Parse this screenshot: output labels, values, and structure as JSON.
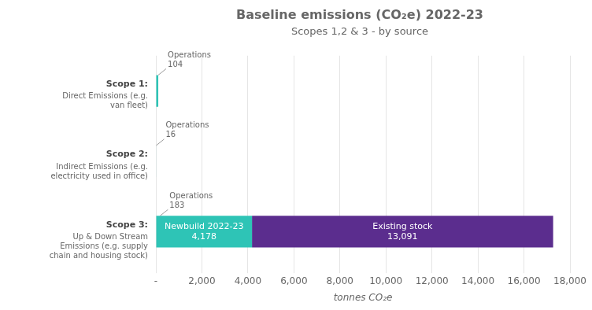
{
  "chart_data": {
    "type": "bar",
    "orientation": "horizontal",
    "stacked": true,
    "grid": true,
    "title": "Baseline emissions (CO₂e) 2022-23",
    "subtitle": "Scopes 1,2 & 3 - by source",
    "xlabel": "tonnes CO₂e",
    "categories": [
      "Scope 1:",
      "Scope 2:",
      "Scope 3:"
    ],
    "category_descriptions": [
      "Direct Emissions (e.g.\nvan fleet)",
      "Indirect Emissions (e.g.\nelectricity used in office)",
      "Up & Down Stream\nEmissions (e.g. supply\nchain and housing stock)"
    ],
    "series": [
      {
        "color": "#2EC4B6",
        "values": [
          104,
          16,
          null
        ]
      },
      {
        "name": "Newbuild 2022-23",
        "color": "#2EC4B6",
        "values": [
          null,
          null,
          4178
        ],
        "data_labels": true,
        "value_labels": [
          null,
          null,
          "4,178"
        ]
      },
      {
        "name": "Existing stock",
        "color": "#5B2D8E",
        "values": [
          null,
          null,
          13091
        ],
        "data_labels": true,
        "value_labels": [
          null,
          null,
          "13,091"
        ]
      }
    ],
    "xlim": [
      0,
      18000
    ],
    "xticks": [
      {
        "value": 0,
        "label": "-"
      },
      {
        "value": 2000,
        "label": "2,000"
      },
      {
        "value": 4000,
        "label": "4,000"
      },
      {
        "value": 6000,
        "label": "6,000"
      },
      {
        "value": 8000,
        "label": "8,000"
      },
      {
        "value": 10000,
        "label": "10,000"
      },
      {
        "value": 12000,
        "label": "12,000"
      },
      {
        "value": 14000,
        "label": "14,000"
      },
      {
        "value": 16000,
        "label": "16,000"
      },
      {
        "value": 18000,
        "label": "18,000"
      }
    ],
    "annotations": [
      {
        "text": "Operations\n104",
        "category": "Scope 1:",
        "x": 104
      },
      {
        "text": "Operations\n16",
        "category": "Scope 2:",
        "x": 16
      },
      {
        "text": "Operations\n183",
        "category": "Scope 3:",
        "x": 183
      }
    ]
  }
}
